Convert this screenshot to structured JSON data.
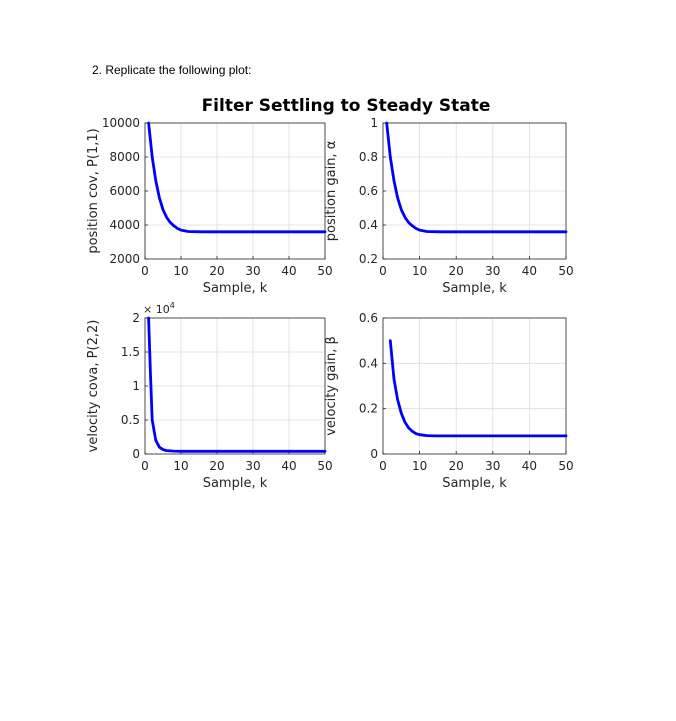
{
  "document": {
    "heading": "2.   Replicate the following plot:"
  },
  "figure_title": "Filter Settling to Steady State",
  "chart_data": [
    {
      "type": "line",
      "id": "p11",
      "xlabel": "Sample, k",
      "ylabel": "position cov, P(1,1)",
      "xlim": [
        0,
        50
      ],
      "ylim": [
        2000,
        10000
      ],
      "xticks": [
        0,
        10,
        20,
        30,
        40,
        50
      ],
      "yticks": [
        2000,
        4000,
        6000,
        8000,
        10000
      ],
      "ytick_labels": [
        "2000",
        "4000",
        "6000",
        "8000",
        "10000"
      ],
      "multiplier": "",
      "grid": true,
      "color": "#0000ff",
      "series": [
        {
          "x": [
            1,
            2,
            3,
            4,
            5,
            6,
            7,
            8,
            9,
            10,
            12,
            14,
            16,
            20,
            30,
            40,
            50
          ],
          "y": [
            10000,
            8000,
            6600,
            5600,
            4900,
            4450,
            4150,
            3950,
            3800,
            3700,
            3620,
            3605,
            3600,
            3600,
            3600,
            3600,
            3600
          ]
        }
      ]
    },
    {
      "type": "line",
      "id": "alpha",
      "xlabel": "Sample, k",
      "ylabel": "position gain, α",
      "xlim": [
        0,
        50
      ],
      "ylim": [
        0.2,
        1
      ],
      "xticks": [
        0,
        10,
        20,
        30,
        40,
        50
      ],
      "yticks": [
        0.2,
        0.4,
        0.6,
        0.8,
        1
      ],
      "ytick_labels": [
        "0.2",
        "0.4",
        "0.6",
        "0.8",
        "1"
      ],
      "multiplier": "",
      "grid": true,
      "color": "#0000ff",
      "series": [
        {
          "x": [
            1,
            2,
            3,
            4,
            5,
            6,
            7,
            8,
            9,
            10,
            12,
            14,
            16,
            20,
            30,
            40,
            50
          ],
          "y": [
            1.0,
            0.8,
            0.66,
            0.56,
            0.49,
            0.445,
            0.415,
            0.395,
            0.38,
            0.37,
            0.362,
            0.3605,
            0.36,
            0.36,
            0.36,
            0.36,
            0.36
          ]
        }
      ]
    },
    {
      "type": "line",
      "id": "p22",
      "xlabel": "Sample, k",
      "ylabel": "velocity cova, P(2,2)",
      "xlim": [
        0,
        50
      ],
      "ylim": [
        0,
        20000
      ],
      "xticks": [
        0,
        10,
        20,
        30,
        40,
        50
      ],
      "yticks": [
        0,
        5000,
        10000,
        15000,
        20000
      ],
      "ytick_labels": [
        "0",
        "0.5",
        "1",
        "1.5",
        "2"
      ],
      "multiplier": "× 10",
      "multiplier_exp": "4",
      "grid": true,
      "color": "#0000ff",
      "series": [
        {
          "x": [
            1,
            1.5,
            2,
            3,
            4,
            5,
            6,
            8,
            10,
            20,
            30,
            40,
            50
          ],
          "y": [
            20000,
            12000,
            5000,
            2000,
            1000,
            650,
            500,
            420,
            400,
            400,
            400,
            400,
            400
          ]
        }
      ]
    },
    {
      "type": "line",
      "id": "beta",
      "xlabel": "Sample, k",
      "ylabel": "velocity gain, β",
      "xlim": [
        0,
        50
      ],
      "ylim": [
        0,
        0.6
      ],
      "xticks": [
        0,
        10,
        20,
        30,
        40,
        50
      ],
      "yticks": [
        0,
        0.2,
        0.4,
        0.6
      ],
      "ytick_labels": [
        "0",
        "0.2",
        "0.4",
        "0.6"
      ],
      "multiplier": "",
      "grid": true,
      "color": "#0000ff",
      "series": [
        {
          "x": [
            2,
            3,
            4,
            5,
            6,
            7,
            8,
            9,
            10,
            12,
            14,
            20,
            30,
            40,
            50
          ],
          "y": [
            0.5,
            0.33,
            0.24,
            0.18,
            0.14,
            0.115,
            0.1,
            0.09,
            0.085,
            0.081,
            0.08,
            0.08,
            0.08,
            0.08,
            0.08
          ]
        }
      ]
    }
  ]
}
